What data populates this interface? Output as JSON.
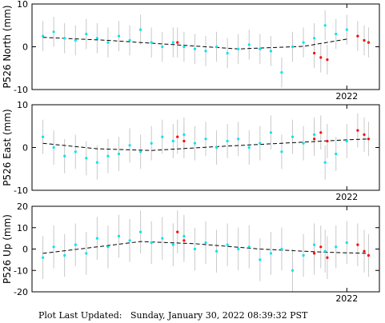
{
  "footer": {
    "label": "Plot Last Updated:",
    "value": "Sunday, January 30, 2022 08:39:32 PST"
  },
  "colors": {
    "final_points": "#00e5ee",
    "rapid_points": "#ff0000",
    "error_bars": "#c8c8c8",
    "trend": "#000000",
    "axes": "#000000"
  },
  "chart_data": [
    {
      "type": "scatter",
      "title": "",
      "ylabel": "P526 North (mm)",
      "xlabel": "",
      "x_tick_labels": [
        "2022"
      ],
      "x_range": [
        2020.55,
        2022.15
      ],
      "ylim": [
        -10,
        10
      ],
      "y_ticks": [
        -10,
        0,
        10
      ],
      "grid": false,
      "error_bar_mm": 3.5,
      "trend": {
        "x": [
          2020.6,
          2020.9,
          2021.2,
          2021.5,
          2021.8,
          2022.0
        ],
        "y": [
          2.2,
          1.5,
          0.5,
          -0.5,
          0.1,
          1.8
        ]
      },
      "series": [
        {
          "role": "final",
          "x": [
            2020.6,
            2020.65,
            2020.7,
            2020.75,
            2020.8,
            2020.85,
            2020.9,
            2020.95,
            2021.0,
            2021.05,
            2021.1,
            2021.15,
            2021.2,
            2021.25,
            2021.3,
            2021.35,
            2021.4,
            2021.45,
            2021.5,
            2021.55,
            2021.6,
            2021.65,
            2021.7,
            2021.75,
            2021.8,
            2021.85,
            2021.9,
            2021.95,
            2022.0
          ],
          "y": [
            2.5,
            3.5,
            2.0,
            1.5,
            3.0,
            2.0,
            1.0,
            2.5,
            1.5,
            4.0,
            1.0,
            0.0,
            1.0,
            0.0,
            -0.5,
            -1.0,
            0.0,
            -1.5,
            -0.5,
            0.5,
            -0.5,
            -1.0,
            -6.0,
            0.0,
            1.0,
            2.0,
            5.0,
            3.0,
            4.0
          ]
        },
        {
          "role": "rapid",
          "x": [
            2021.22,
            2021.85,
            2021.88,
            2021.91,
            2022.05,
            2022.08,
            2022.1
          ],
          "y": [
            1.0,
            -1.5,
            -2.5,
            -3.0,
            2.5,
            1.5,
            1.0
          ]
        }
      ]
    },
    {
      "type": "scatter",
      "title": "",
      "ylabel": "P526 East (mm)",
      "xlabel": "",
      "x_tick_labels": [
        "2022"
      ],
      "x_range": [
        2020.55,
        2022.15
      ],
      "ylim": [
        -10,
        10
      ],
      "y_ticks": [
        -10,
        0,
        10
      ],
      "grid": false,
      "error_bar_mm": 4.0,
      "trend": {
        "x": [
          2020.6,
          2020.85,
          2021.1,
          2021.4,
          2021.7,
          2022.0,
          2022.1
        ],
        "y": [
          1.0,
          -0.3,
          -0.7,
          0.2,
          1.0,
          1.8,
          2.0
        ]
      },
      "series": [
        {
          "role": "final",
          "x": [
            2020.6,
            2020.65,
            2020.7,
            2020.75,
            2020.8,
            2020.85,
            2020.9,
            2020.95,
            2021.0,
            2021.05,
            2021.1,
            2021.15,
            2021.2,
            2021.25,
            2021.3,
            2021.35,
            2021.4,
            2021.45,
            2021.5,
            2021.55,
            2021.6,
            2021.65,
            2021.7,
            2021.75,
            2021.8,
            2021.85,
            2021.9,
            2021.95,
            2022.0
          ],
          "y": [
            2.5,
            0.0,
            -2.0,
            -1.0,
            -2.5,
            -3.5,
            -2.0,
            -1.5,
            0.5,
            -1.0,
            1.0,
            2.5,
            1.5,
            3.0,
            1.0,
            2.0,
            0.0,
            1.5,
            2.0,
            0.0,
            1.0,
            3.5,
            -1.0,
            2.5,
            1.0,
            3.0,
            -3.5,
            -1.5,
            1.5
          ]
        },
        {
          "role": "rapid",
          "x": [
            2021.22,
            2021.25,
            2021.85,
            2021.88,
            2021.91,
            2022.05,
            2022.08,
            2022.1
          ],
          "y": [
            2.5,
            1.5,
            2.0,
            3.5,
            1.5,
            4.0,
            3.0,
            2.0
          ]
        }
      ]
    },
    {
      "type": "scatter",
      "title": "",
      "ylabel": "P526 Up (mm)",
      "xlabel": "",
      "x_tick_labels": [
        "2022"
      ],
      "x_range": [
        2020.55,
        2022.15
      ],
      "ylim": [
        -20,
        20
      ],
      "y_ticks": [
        -20,
        -10,
        0,
        10,
        20
      ],
      "grid": false,
      "error_bar_mm": 10.0,
      "trend": {
        "x": [
          2020.6,
          2020.85,
          2021.05,
          2021.3,
          2021.6,
          2021.9,
          2022.1
        ],
        "y": [
          -2.0,
          1.0,
          3.5,
          2.5,
          0.0,
          -1.5,
          -2.0
        ]
      },
      "series": [
        {
          "role": "final",
          "x": [
            2020.6,
            2020.65,
            2020.7,
            2020.75,
            2020.8,
            2020.85,
            2020.9,
            2020.95,
            2021.0,
            2021.05,
            2021.1,
            2021.15,
            2021.2,
            2021.25,
            2021.3,
            2021.35,
            2021.4,
            2021.45,
            2021.5,
            2021.55,
            2021.6,
            2021.65,
            2021.7,
            2021.75,
            2021.8,
            2021.85,
            2021.9,
            2021.95,
            2022.0
          ],
          "y": [
            -4.0,
            1.0,
            -3.0,
            2.0,
            -2.0,
            5.0,
            1.0,
            6.0,
            4.0,
            8.0,
            3.0,
            5.0,
            2.0,
            6.0,
            0.0,
            3.0,
            -1.0,
            2.0,
            0.0,
            1.0,
            -5.0,
            -2.0,
            0.0,
            -10.0,
            -3.0,
            2.0,
            -1.0,
            1.0,
            3.0
          ]
        },
        {
          "role": "rapid",
          "x": [
            2021.22,
            2021.25,
            2021.85,
            2021.88,
            2021.91,
            2022.05,
            2022.08,
            2022.1
          ],
          "y": [
            8.0,
            4.0,
            -2.0,
            1.0,
            -4.0,
            2.0,
            -1.0,
            -3.0
          ]
        }
      ]
    }
  ]
}
